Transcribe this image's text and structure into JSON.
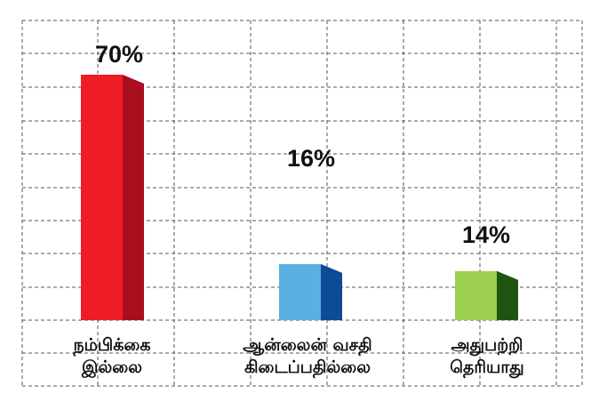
{
  "chart_data": {
    "type": "bar",
    "categories": [
      [
        "நம்பிக்கை",
        "இல்லை"
      ],
      [
        "ஆன்லைன் வசதி",
        "கிடைப்பதில்லை"
      ],
      [
        "அதுபற்றி",
        "தெரியாது"
      ]
    ],
    "values": [
      70,
      16,
      14
    ],
    "value_labels": [
      "70%",
      "16%",
      "14%"
    ],
    "ylim": [
      0,
      70
    ],
    "grid": true,
    "colors": {
      "front": [
        "#ee1c25",
        "#5ab0e3",
        "#9dcf50"
      ],
      "side": [
        "#a80e1c",
        "#0c4b96",
        "#1f5410"
      ]
    }
  }
}
